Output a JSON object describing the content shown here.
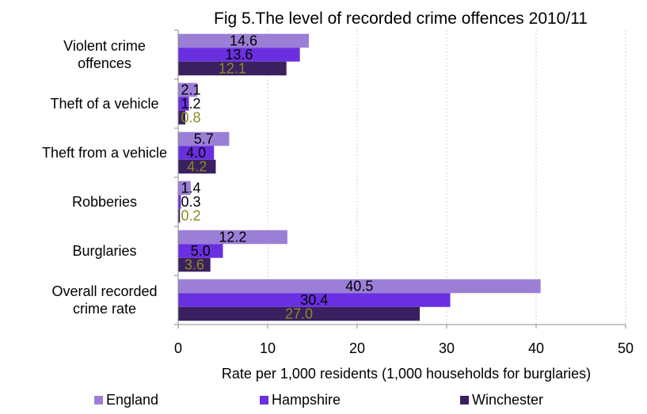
{
  "chart_data": {
    "type": "bar",
    "orientation": "horizontal",
    "title": "Fig 5.The level of recorded crime offences 2010/11",
    "xlabel": "Rate per 1,000 residents  (1,000 households for burglaries)",
    "ylabel": "",
    "xlim": [
      0,
      50
    ],
    "xticks": [
      "0",
      "10",
      "20",
      "30",
      "40",
      "50"
    ],
    "grid": "vertical dashed",
    "legend_position": "bottom",
    "categories": [
      [
        "Violent crime",
        "offences"
      ],
      [
        "Theft of a vehicle"
      ],
      [
        "Theft from a vehicle"
      ],
      [
        "Robberies"
      ],
      [
        "Burglaries"
      ],
      [
        "Overall recorded",
        "crime rate"
      ]
    ],
    "series": [
      {
        "name": "England",
        "color": "#9b7fd6",
        "label_color": "#000000",
        "values": [
          14.6,
          2.1,
          5.7,
          1.4,
          12.2,
          40.5
        ],
        "labels": [
          "14.6",
          "2.1",
          "5.7",
          "1.4",
          "12.2",
          "40.5"
        ]
      },
      {
        "name": "Hampshire",
        "color": "#6a2fe0",
        "label_color": "#000000",
        "values": [
          13.6,
          1.2,
          4.0,
          0.3,
          5.0,
          30.4
        ],
        "labels": [
          "13.6",
          "1.2",
          "4.0",
          "0.3",
          "5.0",
          "30.4"
        ]
      },
      {
        "name": "Winchester",
        "color": "#3b2060",
        "label_color": "#8a8a1e",
        "values": [
          12.1,
          0.8,
          4.2,
          0.2,
          3.6,
          27.0
        ],
        "labels": [
          "12.1",
          "0.8",
          "4.2",
          "0.2",
          "3.6",
          "27.0"
        ]
      }
    ]
  }
}
